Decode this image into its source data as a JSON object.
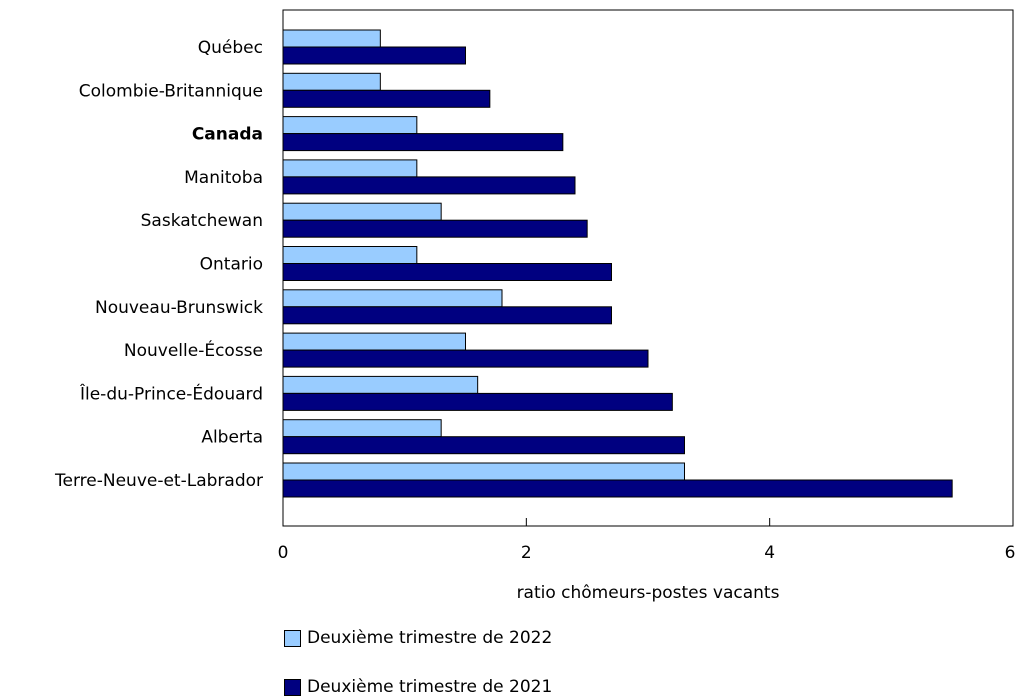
{
  "chart_data": {
    "type": "bar",
    "orientation": "horizontal",
    "categories": [
      "Québec",
      "Colombie-Britannique",
      "Canada",
      "Manitoba",
      "Saskatchewan",
      "Ontario",
      "Nouveau-Brunswick",
      "Nouvelle-Écosse",
      "Île-du-Prince-Édouard",
      "Alberta",
      "Terre-Neuve-et-Labrador"
    ],
    "highlight_category": "Canada",
    "series": [
      {
        "name": "Deuxième trimestre de 2022",
        "color": "#99ccff",
        "values": [
          0.8,
          0.8,
          1.1,
          1.1,
          1.3,
          1.1,
          1.8,
          1.5,
          1.6,
          1.3,
          3.3
        ]
      },
      {
        "name": "Deuxième trimestre de 2021",
        "color": "#000080",
        "values": [
          1.5,
          1.7,
          2.3,
          2.4,
          2.5,
          2.7,
          2.7,
          3.0,
          3.2,
          3.3,
          5.5
        ]
      }
    ],
    "xlabel": "ratio chômeurs-postes vacants",
    "xlim": [
      0,
      6
    ],
    "xticks": [
      "0",
      "2",
      "4",
      "6"
    ],
    "grid": false,
    "legend_position": "bottom"
  }
}
